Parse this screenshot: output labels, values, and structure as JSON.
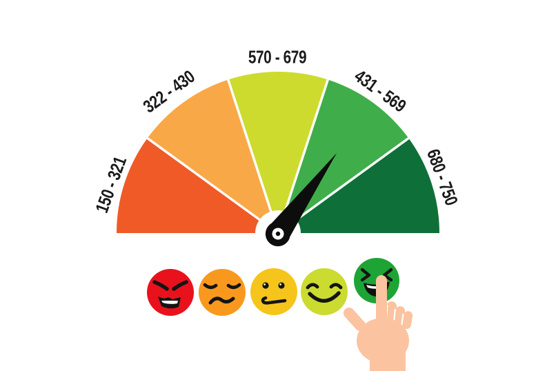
{
  "gauge": {
    "segments": [
      {
        "range": "150 - 321",
        "color": "#EF5A27",
        "sentiment": "very-poor"
      },
      {
        "range": "322 - 430",
        "color": "#F9A848",
        "sentiment": "poor"
      },
      {
        "range": "570 - 679",
        "color": "#CDDB2E",
        "sentiment": "fair"
      },
      {
        "range": "431 - 569",
        "color": "#3FAE4A",
        "sentiment": "good"
      },
      {
        "range": "680 - 750",
        "color": "#0E7038",
        "sentiment": "excellent"
      }
    ],
    "needle": {
      "angle_deg": 36,
      "color": "#0d0d0d"
    }
  },
  "emojis": [
    {
      "name": "angry",
      "color": "#E9121C"
    },
    {
      "name": "sad",
      "color": "#F8991E"
    },
    {
      "name": "neutral",
      "color": "#F6C51C"
    },
    {
      "name": "happy",
      "color": "#CBDB30"
    },
    {
      "name": "laughing",
      "color": "#1DA434"
    }
  ],
  "hand": {
    "color": "#FBC3A0"
  },
  "face_ink": "#141414",
  "chart_data": {
    "type": "gauge",
    "title": "",
    "scale_min": 150,
    "scale_max": 750,
    "segments": [
      {
        "label": "150 - 321",
        "color": "#EF5A27"
      },
      {
        "label": "322 - 430",
        "color": "#F9A848"
      },
      {
        "label": "570 - 679",
        "color": "#CDDB2E"
      },
      {
        "label": "431 - 569",
        "color": "#3FAE4A"
      },
      {
        "label": "680 - 750",
        "color": "#0E7038"
      }
    ],
    "segment_arc_deg": 36,
    "needle_angle_from_vertical_deg": 36,
    "needle_points_to_segment": "431 - 569",
    "rating_faces": [
      "angry",
      "sad",
      "neutral",
      "happy",
      "laughing"
    ],
    "selected_face": "laughing"
  }
}
